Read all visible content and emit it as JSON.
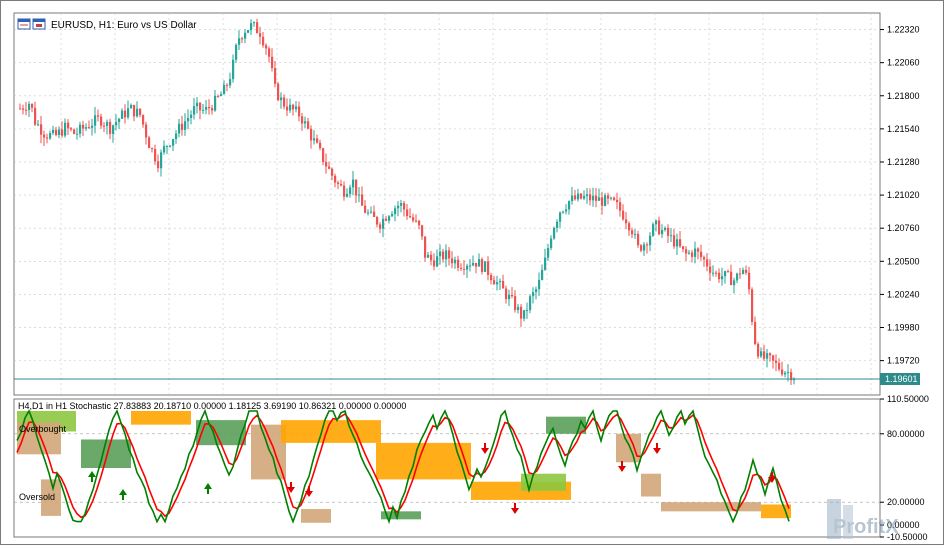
{
  "header": {
    "title": "EURUSD, H1:  Euro vs US Dollar",
    "icon_names": [
      "chart-window-icon",
      "chart-window-restore-icon"
    ]
  },
  "main_chart": {
    "symbol": "EURUSD",
    "timeframe": "H1",
    "price_ticks": [
      "1.22320",
      "1.22060",
      "1.21800",
      "1.21540",
      "1.21280",
      "1.21020",
      "1.20760",
      "1.20500",
      "1.20240",
      "1.19980",
      "1.19720"
    ],
    "current_price": "1.19601",
    "colors": {
      "bull": "#26a69a",
      "bear": "#ef5350",
      "price_line": "#2e8b8b",
      "grid": "#c8c8c8"
    }
  },
  "sub_chart": {
    "label": "H4,D1 in H1 Stochastic 27.83883 20.18710 0.00000 1.18125 3.69190 10.86321 0.00000 0.00000",
    "overbought_label": "Overbought",
    "oversold_label": "Oversold",
    "ticks": [
      "110.50000",
      "80.00000",
      "20.00000",
      "0.00000",
      "-10.50000"
    ],
    "colors": {
      "main_line": "#008000",
      "signal_line": "#ff0000",
      "band_orange": "#ffa500",
      "band_green": "#5aa05a",
      "band_tan": "#d2a679",
      "overbought_fill": "#8dc63f",
      "arrows": "#e00000"
    }
  },
  "watermark": "ProfitX"
}
